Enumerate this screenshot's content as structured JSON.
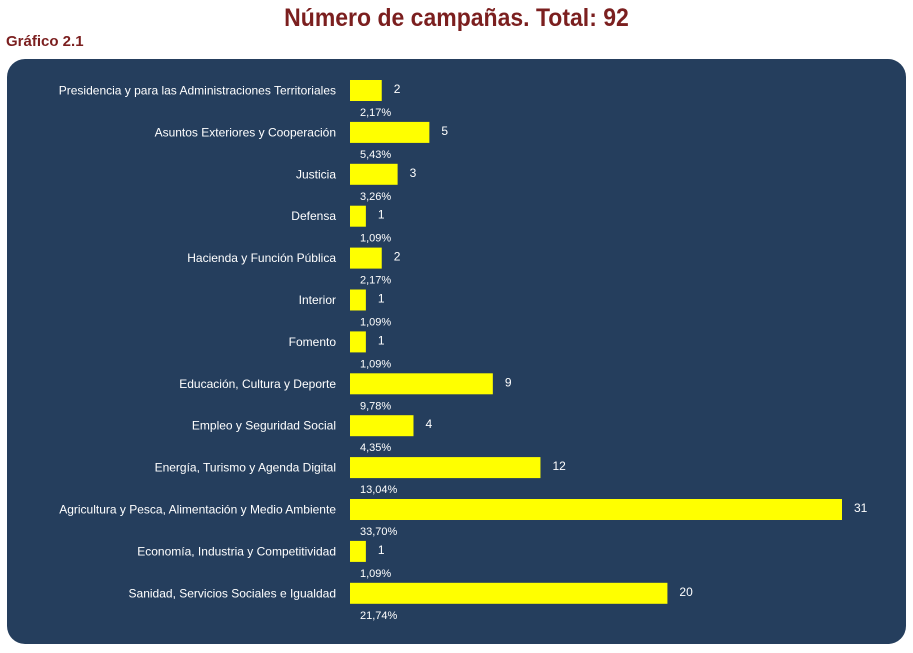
{
  "header": {
    "title": "Número de campañas. Total: 92",
    "subtitle": "Gráfico 2.1"
  },
  "colors": {
    "title": "#7b1f1f",
    "panel": "#253e5d",
    "bar": "#ffff00",
    "text": "#ffffff"
  },
  "chart_data": {
    "type": "bar",
    "orientation": "horizontal",
    "title": "Número de campañas. Total: 92",
    "categories": [
      "Presidencia y para las Administraciones Territoriales",
      "Asuntos Exteriores y Cooperación",
      "Justicia",
      "Defensa",
      "Hacienda y Función Pública",
      "Interior",
      "Fomento",
      "Educación, Cultura y Deporte",
      "Empleo y Seguridad Social",
      "Energía, Turismo y Agenda Digital",
      "Agricultura y Pesca, Alimentación y Medio Ambiente",
      "Economía, Industria y Competitividad",
      "Sanidad, Servicios Sociales e Igualdad"
    ],
    "values": [
      2,
      5,
      3,
      1,
      2,
      1,
      1,
      9,
      4,
      12,
      31,
      1,
      20
    ],
    "percent_labels": [
      "2,17%",
      "5,43%",
      "3,26%",
      "1,09%",
      "2,17%",
      "1,09%",
      "1,09%",
      "9,78%",
      "4,35%",
      "13,04%",
      "33,70%",
      "1,09%",
      "21,74%"
    ],
    "xlim": [
      0,
      31
    ],
    "grid": false,
    "legend": "none"
  }
}
